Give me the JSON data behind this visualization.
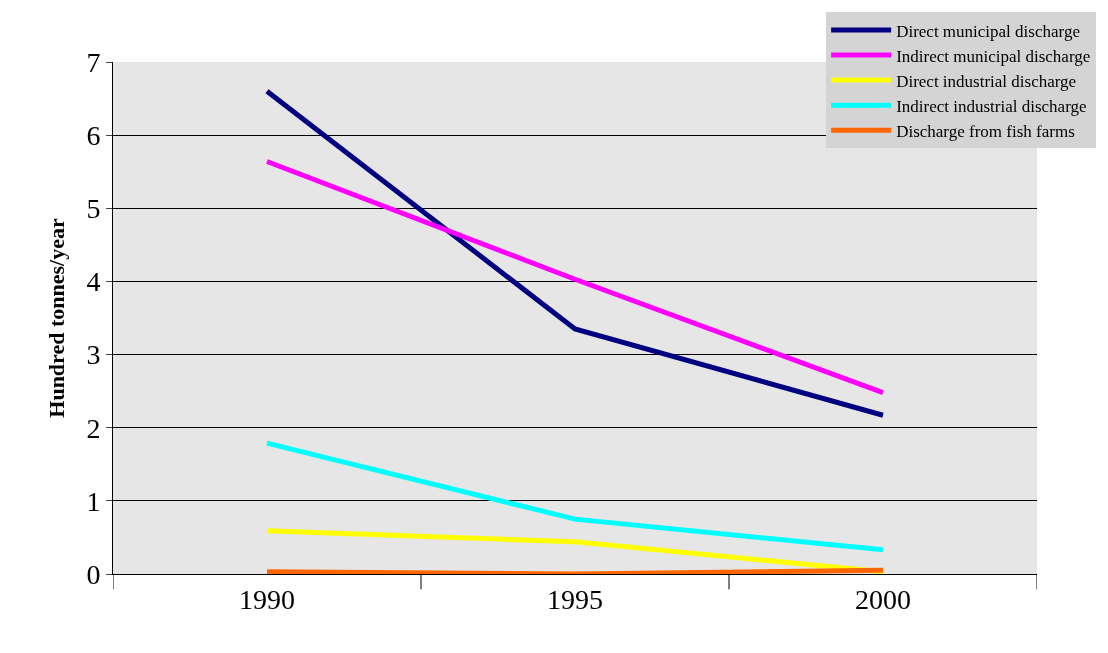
{
  "chart_data": {
    "type": "line",
    "ylabel": "Hundred tonnes/year",
    "categories": [
      "1990",
      "1995",
      "2000"
    ],
    "series": [
      {
        "name": "Direct municipal discharge",
        "color": "#000080",
        "values": [
          6.6,
          3.35,
          2.17
        ]
      },
      {
        "name": "Indirect municipal discharge",
        "color": "#ff00ff",
        "values": [
          5.64,
          4.03,
          2.48
        ]
      },
      {
        "name": "Direct industrial discharge",
        "color": "#ffff00",
        "values": [
          0.59,
          0.44,
          0.03
        ]
      },
      {
        "name": "Indirect industrial discharge",
        "color": "#00ffff",
        "values": [
          1.79,
          0.75,
          0.33
        ]
      },
      {
        "name": "Discharge from fish farms",
        "color": "#ff6600",
        "values": [
          0.03,
          0.0,
          0.05
        ]
      }
    ],
    "ylim": [
      0,
      7
    ],
    "yticks": [
      0,
      1,
      2,
      3,
      4,
      5,
      6,
      7
    ],
    "grid": "y",
    "legend": "top right",
    "marker": "none",
    "line_style": "solid"
  }
}
